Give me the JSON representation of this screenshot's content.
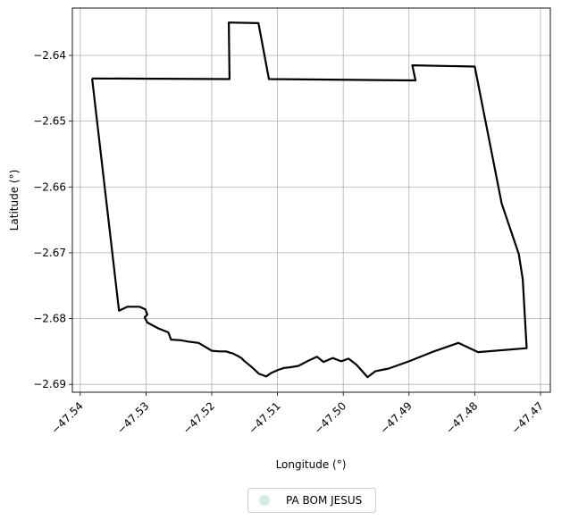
{
  "chart_data": {
    "type": "line",
    "title": "",
    "xlabel": "Longitude (°)",
    "ylabel": "Latitude (°)",
    "xlim": [
      -47.5412,
      -47.4685
    ],
    "ylim": [
      -2.6912,
      -2.6328
    ],
    "grid": true,
    "xticks": [
      -47.54,
      -47.53,
      -47.52,
      -47.51,
      -47.5,
      -47.49,
      -47.48,
      -47.47
    ],
    "xtick_labels": [
      "−47.54",
      "−47.53",
      "−47.52",
      "−47.51",
      "−47.50",
      "−47.49",
      "−47.48",
      "−47.47"
    ],
    "yticks": [
      -2.64,
      -2.65,
      -2.66,
      -2.67,
      -2.68,
      -2.69
    ],
    "ytick_labels": [
      "−2.64",
      "−2.65",
      "−2.66",
      "−2.67",
      "−2.68",
      "−2.69"
    ],
    "legend": {
      "placement": "bottom-center",
      "entries": [
        {
          "label": "PA BOM JESUS",
          "color": "#d4ede0",
          "marker": "circle"
        }
      ]
    },
    "series": [
      {
        "name": "PA BOM JESUS",
        "color": "#000000",
        "points": [
          [
            -47.5382,
            -2.6435
          ],
          [
            -47.5173,
            -2.6436
          ],
          [
            -47.5174,
            -2.635
          ],
          [
            -47.5129,
            -2.6351
          ],
          [
            -47.5113,
            -2.6436
          ],
          [
            -47.489,
            -2.6438
          ],
          [
            -47.4895,
            -2.6415
          ],
          [
            -47.48,
            -2.6417
          ],
          [
            -47.4759,
            -2.6625
          ],
          [
            -47.4733,
            -2.6702
          ],
          [
            -47.4727,
            -2.674
          ],
          [
            -47.4721,
            -2.6845
          ],
          [
            -47.4795,
            -2.6851
          ],
          [
            -47.4825,
            -2.6837
          ],
          [
            -47.4865,
            -2.6851
          ],
          [
            -47.49,
            -2.6865
          ],
          [
            -47.4931,
            -2.6876
          ],
          [
            -47.4951,
            -2.688
          ],
          [
            -47.4963,
            -2.6889
          ],
          [
            -47.498,
            -2.687
          ],
          [
            -47.4992,
            -2.6861
          ],
          [
            -47.5003,
            -2.6865
          ],
          [
            -47.5016,
            -2.686
          ],
          [
            -47.503,
            -2.6866
          ],
          [
            -47.504,
            -2.6858
          ],
          [
            -47.5053,
            -2.6864
          ],
          [
            -47.5068,
            -2.6872
          ],
          [
            -47.508,
            -2.6874
          ],
          [
            -47.509,
            -2.6875
          ],
          [
            -47.5099,
            -2.6878
          ],
          [
            -47.511,
            -2.6883
          ],
          [
            -47.5117,
            -2.6888
          ],
          [
            -47.5128,
            -2.6884
          ],
          [
            -47.514,
            -2.6873
          ],
          [
            -47.5151,
            -2.6864
          ],
          [
            -47.5155,
            -2.686
          ],
          [
            -47.516,
            -2.6857
          ],
          [
            -47.5168,
            -2.6853
          ],
          [
            -47.5172,
            -2.6852
          ],
          [
            -47.5178,
            -2.685
          ],
          [
            -47.5188,
            -2.685
          ],
          [
            -47.52,
            -2.6849
          ],
          [
            -47.521,
            -2.6843
          ],
          [
            -47.522,
            -2.6837
          ],
          [
            -47.5236,
            -2.6835
          ],
          [
            -47.5247,
            -2.6833
          ],
          [
            -47.5262,
            -2.6832
          ],
          [
            -47.5266,
            -2.6821
          ],
          [
            -47.5281,
            -2.6815
          ],
          [
            -47.5298,
            -2.6806
          ],
          [
            -47.5302,
            -2.6798
          ],
          [
            -47.5298,
            -2.6794
          ],
          [
            -47.5301,
            -2.6786
          ],
          [
            -47.531,
            -2.6782
          ],
          [
            -47.5328,
            -2.6782
          ],
          [
            -47.5341,
            -2.6788
          ],
          [
            -47.5382,
            -2.6435
          ]
        ]
      }
    ]
  }
}
